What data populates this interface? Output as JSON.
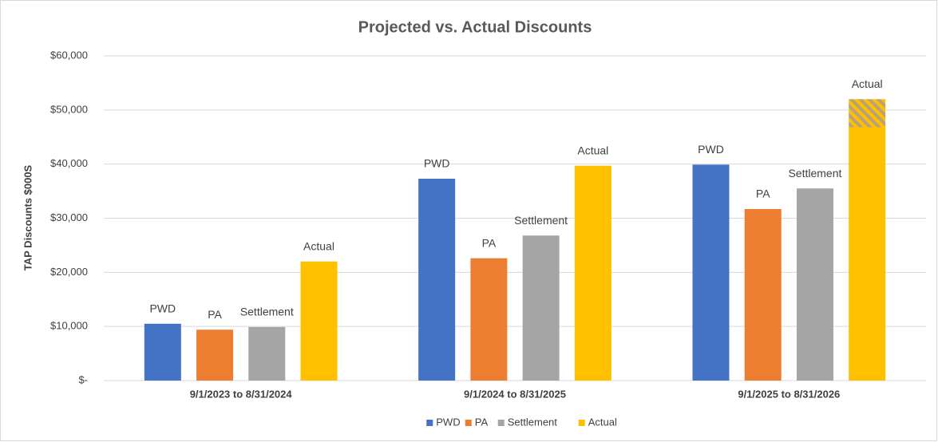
{
  "chart_data": {
    "type": "bar",
    "title": "Projected vs. Actual Discounts",
    "y_label": "TAP Discounts $000S",
    "categories": [
      "9/1/2023 to 8/31/2024",
      "9/1/2024 to 8/31/2025",
      "9/1/2025 to 8/31/2026"
    ],
    "series": [
      {
        "name": "PWD",
        "color": "#4472c4",
        "values": [
          10500,
          37300,
          39900
        ]
      },
      {
        "name": "PA",
        "color": "#ed7d31",
        "values": [
          9400,
          22600,
          31700
        ]
      },
      {
        "name": "Settlement",
        "color": "#a5a5a5",
        "values": [
          9900,
          26800,
          35500
        ]
      },
      {
        "name": "Actual",
        "color": "#ffc000",
        "values": [
          22000,
          39700,
          46800
        ],
        "hatched_values": [
          null,
          null,
          5200
        ]
      }
    ],
    "ylim": [
      0,
      60000
    ],
    "yticks": [
      {
        "value": 0,
        "label": "$-"
      },
      {
        "value": 10000,
        "label": "$10,000"
      },
      {
        "value": 20000,
        "label": "$20,000"
      },
      {
        "value": 30000,
        "label": "$30,000"
      },
      {
        "value": 40000,
        "label": "$40,000"
      },
      {
        "value": 50000,
        "label": "$50,000"
      },
      {
        "value": 60000,
        "label": "$60,000"
      }
    ],
    "grid": true,
    "legend": "bottom"
  }
}
